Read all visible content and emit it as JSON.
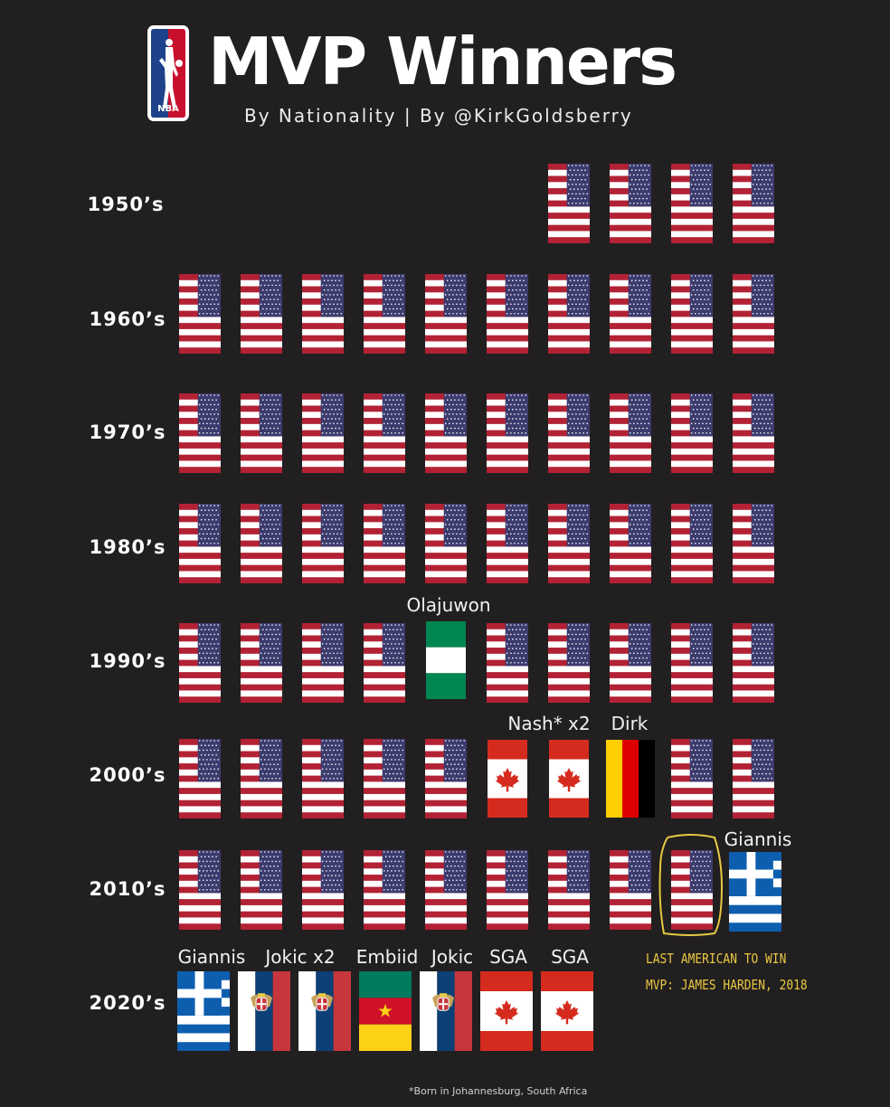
{
  "header": {
    "title": "MVP Winners",
    "subtitle": "By Nationality | By @KirkGoldsberry",
    "logo_text": "NBA"
  },
  "rows": [
    {
      "decade": "1950’s",
      "flags": [
        "usa",
        "usa",
        "usa",
        "usa"
      ],
      "start_slot": 6,
      "labels": []
    },
    {
      "decade": "1960’s",
      "flags": [
        "usa",
        "usa",
        "usa",
        "usa",
        "usa",
        "usa",
        "usa",
        "usa",
        "usa",
        "usa"
      ],
      "start_slot": 0,
      "labels": []
    },
    {
      "decade": "1970’s",
      "flags": [
        "usa",
        "usa",
        "usa",
        "usa",
        "usa",
        "usa",
        "usa",
        "usa",
        "usa",
        "usa"
      ],
      "start_slot": 0,
      "labels": []
    },
    {
      "decade": "1980’s",
      "flags": [
        "usa",
        "usa",
        "usa",
        "usa",
        "usa",
        "usa",
        "usa",
        "usa",
        "usa",
        "usa"
      ],
      "start_slot": 0,
      "labels": []
    },
    {
      "decade": "1990’s",
      "flags": [
        "usa",
        "usa",
        "usa",
        "usa",
        "nigeria",
        "usa",
        "usa",
        "usa",
        "usa",
        "usa"
      ],
      "start_slot": 0,
      "labels": [
        {
          "slot": 4,
          "text": "Olajuwon"
        }
      ]
    },
    {
      "decade": "2000’s",
      "flags": [
        "usa",
        "usa",
        "usa",
        "usa",
        "usa",
        "canada",
        "canada",
        "germany",
        "usa",
        "usa"
      ],
      "start_slot": 0,
      "labels": [
        {
          "slot": 5.5,
          "text": "Nash* x2"
        },
        {
          "slot": 7,
          "text": "Dirk"
        }
      ]
    },
    {
      "decade": "2010’s",
      "flags": [
        "usa",
        "usa",
        "usa",
        "usa",
        "usa",
        "usa",
        "usa",
        "usa",
        "usa",
        "greece"
      ],
      "start_slot": 0,
      "labels": [
        {
          "slot": 9.1,
          "text": "Giannis"
        }
      ]
    },
    {
      "decade": "2020’s",
      "flags": [
        "greece",
        "serbia",
        "serbia",
        "cameroon",
        "serbia",
        "canada",
        "canada"
      ],
      "start_slot": 0,
      "labels": [
        {
          "slot": 0.5,
          "text": "Giannis"
        },
        {
          "slot": 1.5,
          "text": "Jokic x2"
        },
        {
          "slot": 3,
          "text": "Embiid"
        },
        {
          "slot": 4,
          "text": "Jokic"
        },
        {
          "slot": 5,
          "text": "SGA"
        },
        {
          "slot": 6,
          "text": "SGA"
        }
      ]
    }
  ],
  "annotation": {
    "line1": "LAST AMERICAN TO WIN",
    "line2": "MVP: JAMES HARDEN, 2018",
    "color": "#e8c842"
  },
  "footnote": "*Born in Johannesburg, South Africa",
  "colors": {
    "background": "#221f20",
    "usa_red": "#b22234",
    "usa_blue": "#3c3b6e",
    "canada_red": "#d52b1e",
    "nigeria_green": "#008751",
    "greece_blue": "#0d5eaf",
    "serbia_red": "#c6363c",
    "serbia_blue": "#0c4076",
    "cameroon_green": "#007a5e",
    "cameroon_red": "#ce1126",
    "cameroon_yellow": "#fcd116"
  }
}
